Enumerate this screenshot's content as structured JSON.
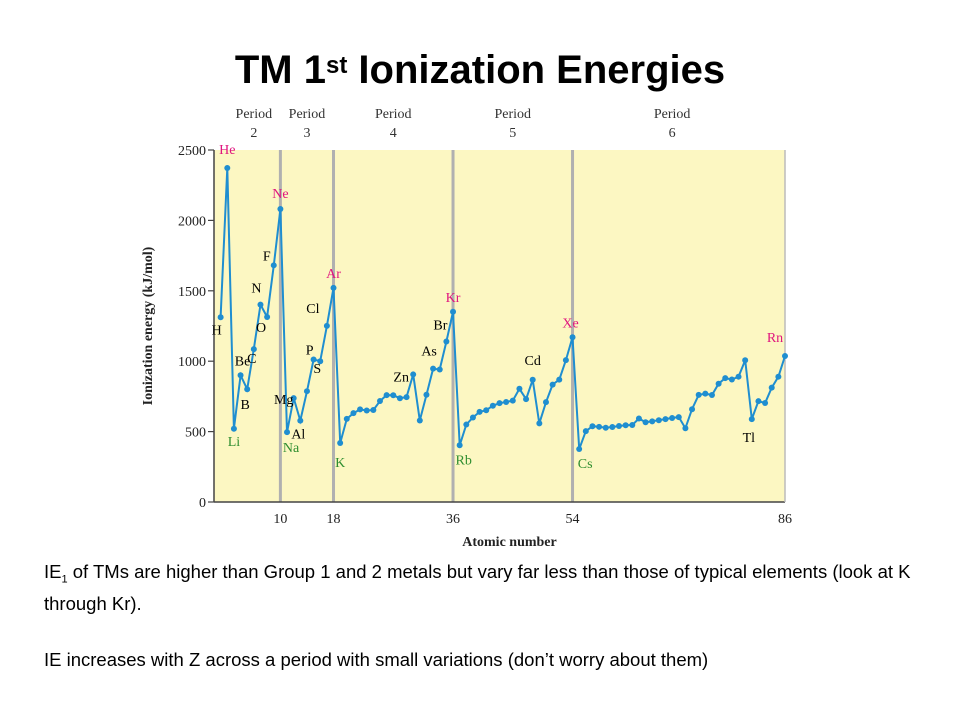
{
  "slide": {
    "title_main": "TM 1",
    "title_sup": "st",
    "title_rest": " Ionization Energies",
    "para1_a": "IE",
    "para1_sub": "1",
    "para1_b": " of TMs are higher than Group 1 and 2 metals but vary far less than those of typical elements (look at K through Kr).",
    "para2": "IE increases with Z across a period with small variations (don’t worry about them)"
  },
  "chart_data": {
    "type": "line",
    "xlabel": "Atomic number",
    "ylabel": "Ionization energy (kJ/mol)",
    "xlim": [
      0,
      86
    ],
    "ylim": [
      0,
      2500
    ],
    "x_ticks": [
      10,
      18,
      36,
      54,
      86
    ],
    "y_ticks": [
      0,
      500,
      1000,
      1500,
      2000,
      2500
    ],
    "period_dividers": [
      10,
      18,
      36,
      54
    ],
    "periods": [
      {
        "line1": "Period",
        "line2": "2",
        "at": 6
      },
      {
        "line1": "Period",
        "line2": "3",
        "at": 14
      },
      {
        "line1": "Period",
        "line2": "4",
        "at": 27
      },
      {
        "line1": "Period",
        "line2": "5",
        "at": 45
      },
      {
        "line1": "Period",
        "line2": "6",
        "at": 69
      }
    ],
    "series": [
      {
        "x": [
          1,
          2,
          3,
          4,
          5,
          6,
          7,
          8,
          9,
          10,
          11,
          12,
          13,
          14,
          15,
          16,
          17,
          18,
          19,
          20,
          21,
          22,
          23,
          24,
          25,
          26,
          27,
          28,
          29,
          30,
          31,
          32,
          33,
          34,
          35,
          36,
          37,
          38,
          39,
          40,
          41,
          42,
          43,
          44,
          45,
          46,
          47,
          48,
          49,
          50,
          51,
          52,
          53,
          54,
          55,
          56,
          57,
          58,
          59,
          60,
          61,
          62,
          63,
          64,
          65,
          66,
          67,
          68,
          69,
          70,
          71,
          72,
          73,
          74,
          75,
          76,
          77,
          78,
          79,
          80,
          81,
          82,
          83,
          84,
          85,
          86
        ],
        "y": [
          1312,
          2372,
          520,
          900,
          801,
          1086,
          1402,
          1314,
          1681,
          2081,
          496,
          738,
          578,
          787,
          1012,
          1000,
          1251,
          1521,
          419,
          590,
          631,
          658,
          650,
          653,
          717,
          759,
          758,
          737,
          745,
          906,
          579,
          762,
          947,
          941,
          1140,
          1351,
          403,
          550,
          600,
          640,
          652,
          684,
          702,
          710,
          720,
          804,
          731,
          868,
          558,
          709,
          834,
          869,
          1008,
          1170,
          376,
          503,
          538,
          534,
          527,
          533,
          540,
          545,
          547,
          593,
          566,
          573,
          581,
          589,
          597,
          603,
          524,
          659,
          761,
          770,
          760,
          840,
          880,
          870,
          890,
          1007,
          589,
          716,
          703,
          812,
          890,
          1037
        ]
      }
    ],
    "element_labels": [
      {
        "text": "H",
        "z": 1,
        "color": "#000000"
      },
      {
        "text": "He",
        "z": 2,
        "color": "#e0157e"
      },
      {
        "text": "Li",
        "z": 3,
        "color": "#2f8e2f"
      },
      {
        "text": "Be",
        "z": 4,
        "color": "#000000"
      },
      {
        "text": "B",
        "z": 5,
        "color": "#000000"
      },
      {
        "text": "C",
        "z": 6,
        "color": "#000000"
      },
      {
        "text": "N",
        "z": 7,
        "color": "#000000"
      },
      {
        "text": "O",
        "z": 8,
        "color": "#000000"
      },
      {
        "text": "F",
        "z": 9,
        "color": "#000000"
      },
      {
        "text": "Ne",
        "z": 10,
        "color": "#e0157e"
      },
      {
        "text": "Na",
        "z": 11,
        "color": "#2f8e2f"
      },
      {
        "text": "Mg",
        "z": 12,
        "color": "#000000"
      },
      {
        "text": "Al",
        "z": 13,
        "color": "#000000"
      },
      {
        "text": "S",
        "z": 16,
        "color": "#000000"
      },
      {
        "text": "P",
        "z": 15,
        "color": "#000000"
      },
      {
        "text": "Cl",
        "z": 17,
        "color": "#000000"
      },
      {
        "text": "Ar",
        "z": 18,
        "color": "#e0157e"
      },
      {
        "text": "K",
        "z": 19,
        "color": "#2f8e2f"
      },
      {
        "text": "Zn",
        "z": 30,
        "color": "#000000"
      },
      {
        "text": "As",
        "z": 33,
        "color": "#000000"
      },
      {
        "text": "Br",
        "z": 35,
        "color": "#000000"
      },
      {
        "text": "Kr",
        "z": 36,
        "color": "#e0157e"
      },
      {
        "text": "Rb",
        "z": 37,
        "color": "#2f8e2f"
      },
      {
        "text": "Cd",
        "z": 48,
        "color": "#000000"
      },
      {
        "text": "Xe",
        "z": 54,
        "color": "#e0157e"
      },
      {
        "text": "Cs",
        "z": 55,
        "color": "#2f8e2f"
      },
      {
        "text": "Tl",
        "z": 81,
        "color": "#000000"
      },
      {
        "text": "Rn",
        "z": 86,
        "color": "#e0157e"
      }
    ],
    "colors": {
      "plot_background": "#fcf7c2",
      "line": "#1f8ed0",
      "marker": "#1f8ed0",
      "gridline": "#b0b0b0",
      "noble_gas": "#e0157e",
      "alkali_metal": "#2f8e2f"
    }
  }
}
